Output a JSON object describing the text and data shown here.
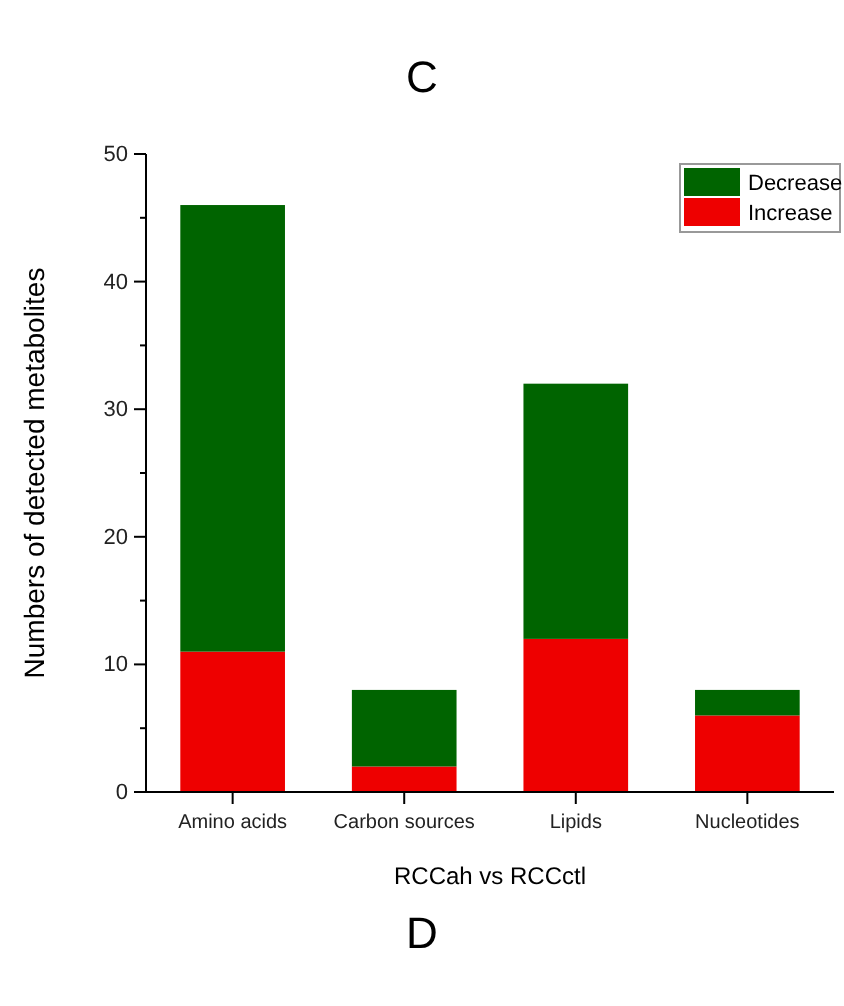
{
  "chart_data": {
    "type": "bar",
    "title": "C",
    "xlabel": "RCCah vs RCCctl",
    "ylabel": "Numbers of detected metabolites",
    "categories": [
      "Amino acids",
      "Carbon sources",
      "Lipids",
      "Nucleotides"
    ],
    "series": [
      {
        "name": "Increase",
        "color": "#ee0000",
        "values": [
          11,
          2,
          12,
          6
        ]
      },
      {
        "name": "Decrease",
        "color": "#006400",
        "values": [
          35,
          6,
          20,
          2
        ]
      }
    ],
    "stacked": true,
    "ylim": [
      0,
      50
    ],
    "yticks": [
      0,
      {
        "value": 5,
        "label": null
      },
      10,
      {
        "value": 15,
        "label": null
      },
      20,
      {
        "value": 25,
        "label": null
      },
      30,
      {
        "value": 35,
        "label": null
      },
      40,
      {
        "value": 45,
        "label": null
      },
      50
    ],
    "legend": "top right",
    "annotations": [
      "D"
    ]
  }
}
